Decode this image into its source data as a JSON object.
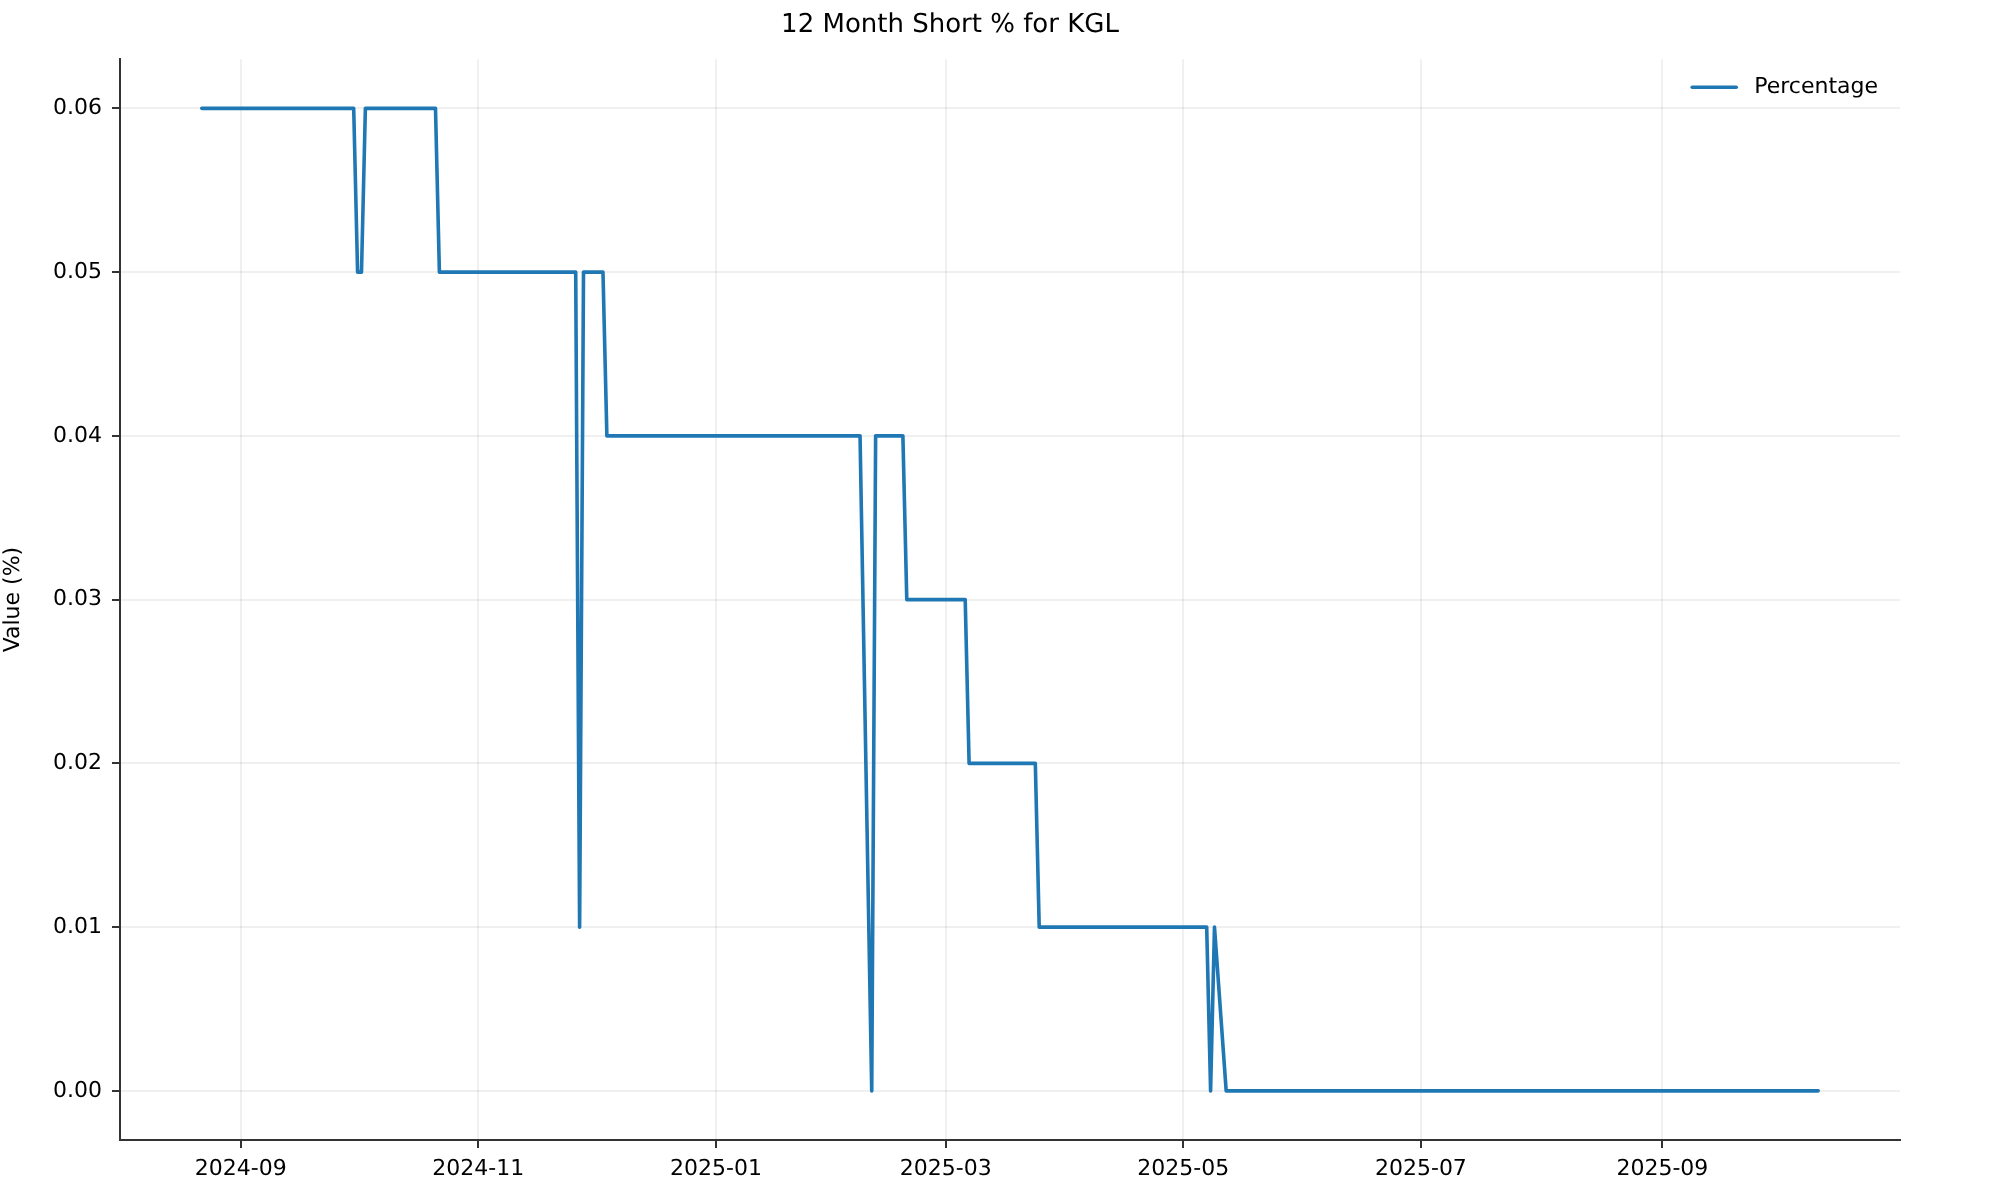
{
  "chart_data": {
    "type": "line",
    "title": "12 Month Short % for KGL",
    "ylabel": "Value (%)",
    "x": [
      "2024-08-22",
      "2024-09-30",
      "2024-10-01",
      "2024-10-02",
      "2024-10-03",
      "2024-10-21",
      "2024-10-22",
      "2024-11-26",
      "2024-11-27",
      "2024-11-28",
      "2024-12-03",
      "2024-12-04",
      "2025-02-07",
      "2025-02-10",
      "2025-02-11",
      "2025-02-18",
      "2025-02-19",
      "2025-03-06",
      "2025-03-07",
      "2025-03-24",
      "2025-03-25",
      "2025-05-07",
      "2025-05-08",
      "2025-05-09",
      "2025-05-12",
      "2025-10-11"
    ],
    "series": [
      {
        "name": "Percentage",
        "color": "#1f77b4",
        "values": [
          0.06,
          0.06,
          0.05,
          0.05,
          0.06,
          0.06,
          0.05,
          0.05,
          0.01,
          0.05,
          0.05,
          0.04,
          0.04,
          0.0,
          0.04,
          0.04,
          0.03,
          0.03,
          0.02,
          0.02,
          0.01,
          0.01,
          0.0,
          0.01,
          0.0,
          0.0
        ]
      }
    ],
    "xlim": [
      "2024-08-01",
      "2025-11-01"
    ],
    "xticks": [
      "2024-09",
      "2024-11",
      "2025-01",
      "2025-03",
      "2025-05",
      "2025-07",
      "2025-09"
    ],
    "ylim": [
      -0.003,
      0.063
    ],
    "yticks": [
      {
        "value": 0,
        "label": "0.00"
      },
      0.01,
      0.02,
      0.03,
      0.04,
      0.05,
      0.06
    ],
    "grid": true,
    "legend": "top right",
    "marker": "none",
    "line_style": "solid"
  }
}
